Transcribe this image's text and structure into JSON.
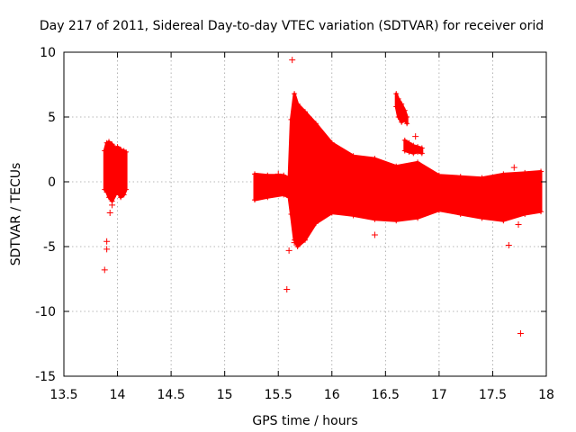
{
  "chart_data": {
    "type": "scatter",
    "title": "Day 217 of 2011, Sidereal Day-to-day VTEC variation (SDTVAR) for receiver orid",
    "xlabel": "GPS time / hours",
    "ylabel": "SDTVAR / TECUs",
    "xlim": [
      13.5,
      18
    ],
    "ylim": [
      -15,
      10
    ],
    "x_ticks": [
      13.5,
      14,
      14.5,
      15,
      15.5,
      16,
      16.5,
      17,
      17.5,
      18
    ],
    "y_ticks": [
      -15,
      -10,
      -5,
      0,
      5,
      10
    ],
    "grid": true,
    "marker": "+",
    "series_color": "#ff0000",
    "dense_bands": [
      {
        "name": "segment-1",
        "x": [
          13.88,
          13.9,
          13.92,
          13.95,
          13.98,
          14.0,
          14.03,
          14.06,
          14.08
        ],
        "upper": [
          2.4,
          3.0,
          3.1,
          2.9,
          2.6,
          2.7,
          2.5,
          2.4,
          2.3
        ],
        "lower": [
          -0.6,
          -0.8,
          -1.2,
          -1.5,
          -1.0,
          -0.8,
          -1.2,
          -1.0,
          -0.6
        ]
      },
      {
        "name": "segment-2",
        "x": [
          15.28,
          15.4,
          15.55,
          15.6,
          15.62,
          15.65,
          15.68,
          15.75,
          15.85,
          16.0,
          16.2,
          16.4,
          16.6,
          16.8,
          17.0,
          17.2,
          17.4,
          17.6,
          17.8,
          17.95
        ],
        "upper": [
          0.6,
          0.5,
          0.5,
          0.3,
          4.8,
          6.8,
          6.0,
          5.4,
          4.5,
          3.0,
          2.0,
          1.8,
          1.2,
          1.5,
          0.5,
          0.4,
          0.3,
          0.6,
          0.7,
          0.8
        ],
        "lower": [
          -1.4,
          -1.2,
          -1.0,
          -1.2,
          -2.5,
          -4.5,
          -5.0,
          -4.5,
          -3.2,
          -2.4,
          -2.6,
          -2.9,
          -3.0,
          -2.8,
          -2.2,
          -2.5,
          -2.8,
          -3.0,
          -2.5,
          -2.3
        ]
      },
      {
        "name": "segment-3",
        "x": [
          16.6,
          16.62,
          16.65,
          16.68,
          16.7
        ],
        "upper": [
          6.8,
          6.4,
          6.0,
          5.5,
          5.0
        ],
        "lower": [
          5.8,
          5.0,
          4.6,
          4.8,
          4.5
        ]
      },
      {
        "name": "segment-4",
        "x": [
          16.68,
          16.72,
          16.76,
          16.8,
          16.84
        ],
        "upper": [
          3.2,
          3.0,
          2.8,
          2.7,
          2.6
        ],
        "lower": [
          2.4,
          2.3,
          2.2,
          2.3,
          2.2
        ]
      }
    ],
    "outliers": [
      {
        "x": 13.88,
        "y": -6.8
      },
      {
        "x": 13.9,
        "y": -5.2
      },
      {
        "x": 13.9,
        "y": -4.6
      },
      {
        "x": 13.93,
        "y": -2.4
      },
      {
        "x": 13.95,
        "y": -1.8
      },
      {
        "x": 15.5,
        "y": 0.6
      },
      {
        "x": 15.58,
        "y": -8.3
      },
      {
        "x": 15.6,
        "y": -5.3
      },
      {
        "x": 15.63,
        "y": 9.4
      },
      {
        "x": 15.65,
        "y": -4.7
      },
      {
        "x": 16.4,
        "y": -4.1
      },
      {
        "x": 16.78,
        "y": 3.5
      },
      {
        "x": 17.65,
        "y": -4.9
      },
      {
        "x": 17.7,
        "y": 1.1
      },
      {
        "x": 17.74,
        "y": -3.3
      },
      {
        "x": 17.76,
        "y": -11.7
      }
    ]
  }
}
